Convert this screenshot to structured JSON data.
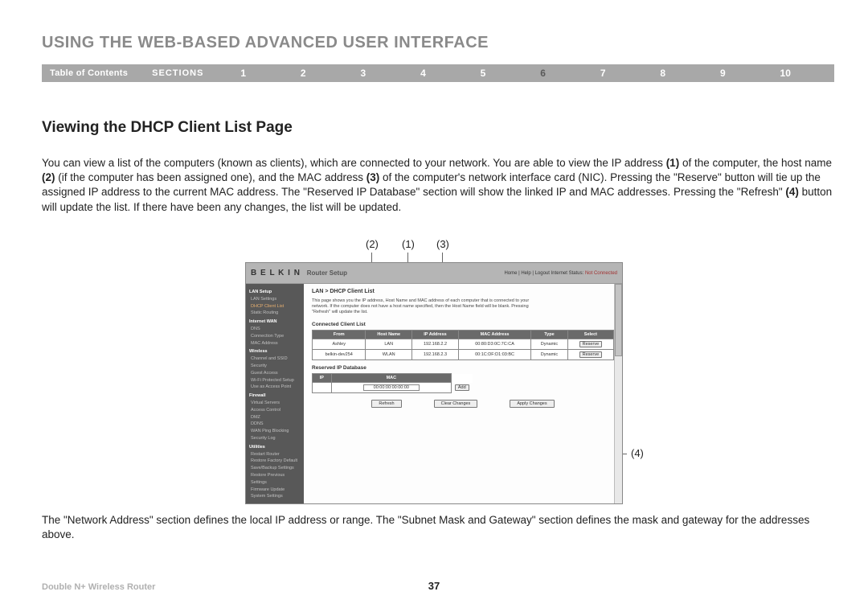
{
  "title": "USING THE WEB-BASED ADVANCED USER INTERFACE",
  "nav": {
    "toc": "Table of Contents",
    "label": "SECTIONS",
    "items": [
      "1",
      "2",
      "3",
      "4",
      "5",
      "6",
      "7",
      "8",
      "9",
      "10"
    ],
    "active": "6"
  },
  "section_heading": "Viewing the DHCP Client List Page",
  "para1_parts": {
    "a": "You can view a list of the computers (known as clients), which are connected to your network. You are able to view the IP address ",
    "b1": "(1)",
    "c": " of the computer, the host name ",
    "b2": "(2)",
    "d": " (if the computer has been assigned one), and the MAC address ",
    "b3": "(3)",
    "e": " of the computer's network interface card (NIC). Pressing the \"Reserve\" button will tie up the assigned IP address to the current MAC address. The \"Reserved IP Database\" section will show the linked IP and MAC addresses. Pressing the \"Refresh\" ",
    "b4": "(4)",
    "f": " button will update the list. If there have been any changes, the list will be updated."
  },
  "para2": "The \"Network Address\" section defines the local IP address or range. The \"Subnet Mask and Gateway\" section defines the mask and gateway for the addresses above.",
  "callouts": {
    "c1": "(1)",
    "c2": "(2)",
    "c3": "(3)",
    "c4": "(4)"
  },
  "screenshot": {
    "brand": "B E L K I N",
    "brand_sub": "Router Setup",
    "header_links": "Home | Help | Logout   Internet Status: ",
    "status": "Not Connected",
    "sidebar": [
      {
        "type": "head",
        "t": "LAN Setup"
      },
      {
        "type": "item",
        "t": "LAN Settings"
      },
      {
        "type": "item",
        "t": "DHCP Client List",
        "active": true
      },
      {
        "type": "item",
        "t": "Static Routing"
      },
      {
        "type": "head",
        "t": "Internet WAN"
      },
      {
        "type": "item",
        "t": "DNS"
      },
      {
        "type": "item",
        "t": "Connection Type"
      },
      {
        "type": "item",
        "t": "MAC Address"
      },
      {
        "type": "head",
        "t": "Wireless"
      },
      {
        "type": "item",
        "t": "Channel and SSID"
      },
      {
        "type": "item",
        "t": "Security"
      },
      {
        "type": "item",
        "t": "Guest Access"
      },
      {
        "type": "item",
        "t": "Wi-Fi Protected Setup"
      },
      {
        "type": "item",
        "t": "Use as Access Point"
      },
      {
        "type": "head",
        "t": "Firewall"
      },
      {
        "type": "item",
        "t": "Virtual Servers"
      },
      {
        "type": "item",
        "t": "Access Control"
      },
      {
        "type": "item",
        "t": "DMZ"
      },
      {
        "type": "item",
        "t": "DDNS"
      },
      {
        "type": "item",
        "t": "WAN Ping Blocking"
      },
      {
        "type": "item",
        "t": "Security Log"
      },
      {
        "type": "head",
        "t": "Utilities"
      },
      {
        "type": "item",
        "t": "Restart Router"
      },
      {
        "type": "item",
        "t": "Restore Factory Default"
      },
      {
        "type": "item",
        "t": "Save/Backup Settings"
      },
      {
        "type": "item",
        "t": "Restore Previous Settings"
      },
      {
        "type": "item",
        "t": "Firmware Update"
      },
      {
        "type": "item",
        "t": "System Settings"
      }
    ],
    "breadcrumb": "LAN > DHCP Client List",
    "desc": "This page shows you the IP address, Host Name and MAC address of each computer that is connected to your network. If the computer does not have a host name specified, then the Host Name field will be blank. Pressing \"Refresh\" will update the list.",
    "connected_head": "Connected Client List",
    "client_cols": [
      "From",
      "Host Name",
      "IP Address",
      "MAC Address",
      "Type",
      "Select"
    ],
    "clients": [
      {
        "from": "Ashley",
        "host": "LAN",
        "ip": "192.168.2.2",
        "mac": "00:80:D3:0C:7C:CA",
        "typ": "Dynamic",
        "btn": "Reserve"
      },
      {
        "from": "belkin-dev254",
        "host": "WLAN",
        "ip": "192.168.2.3",
        "mac": "00:1C:DF:D1:03:BC",
        "typ": "Dynamic",
        "btn": "Reserve"
      }
    ],
    "reserved_head": "Reserved IP Database",
    "resv_cols": [
      "IP",
      "MAC"
    ],
    "mac_placeholder": "00:00:00:00:00:00",
    "add_btn": "Add",
    "actions": [
      "Refresh",
      "Clear Changes",
      "Apply Changes"
    ]
  },
  "footer": {
    "left": "Double N+ Wireless Router",
    "page": "37"
  }
}
